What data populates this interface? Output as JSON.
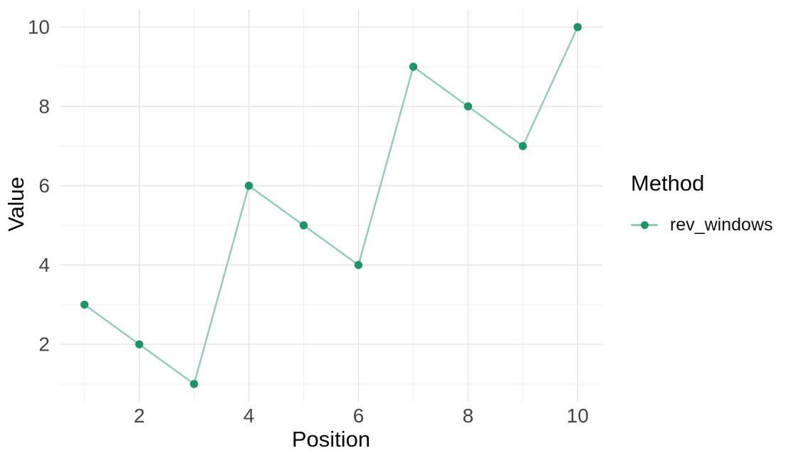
{
  "figure": {
    "background": "#ffffff"
  },
  "chart_data": {
    "type": "line",
    "title": "",
    "xlabel": "Position",
    "ylabel": "Value",
    "x": [
      1,
      2,
      3,
      4,
      5,
      6,
      7,
      8,
      9,
      10
    ],
    "series": [
      {
        "name": "rev_windows",
        "values": [
          3,
          2,
          1,
          6,
          5,
          4,
          9,
          8,
          7,
          10
        ]
      }
    ],
    "xlim": [
      0.55,
      10.45
    ],
    "ylim": [
      0.55,
      10.45
    ],
    "x_major_ticks": [
      2,
      4,
      6,
      8,
      10
    ],
    "y_major_ticks": [
      2,
      4,
      6,
      8,
      10
    ],
    "x_minor_ticks": [
      1,
      3,
      5,
      7,
      9
    ],
    "y_minor_ticks": [
      1,
      3,
      5,
      7,
      9
    ],
    "grid": "on",
    "legend": {
      "title": "Method",
      "position": "right",
      "items": [
        {
          "label": "rev_windows"
        }
      ]
    },
    "colors": {
      "point": "#1f9468",
      "line": "#90ccb3",
      "grid_major": "#e4e4e4",
      "grid_minor": "#efefef",
      "tick_text": "#454545",
      "title_text": "#070707",
      "background": "#ffffff"
    }
  }
}
